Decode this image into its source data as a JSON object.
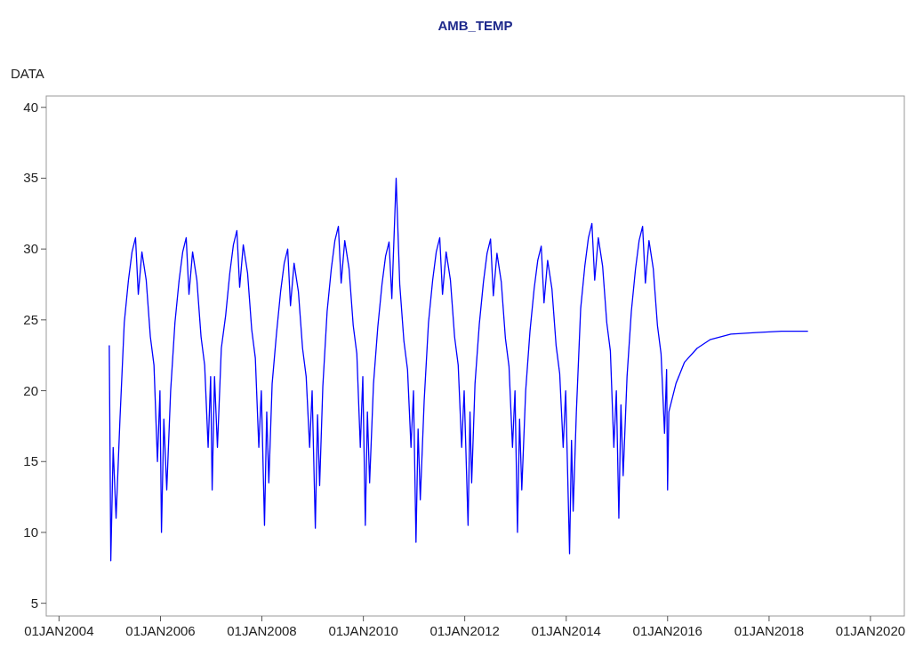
{
  "chart_data": {
    "type": "line",
    "title": "AMB_TEMP",
    "ylabel": "DATA",
    "xlim": [
      "2003-10",
      "2020-09"
    ],
    "ylim": [
      4.1,
      40.8
    ],
    "xticks": [
      {
        "value": "2004-01-01",
        "label": "01JAN2004"
      },
      {
        "value": "2006-01-01",
        "label": "01JAN2006"
      },
      {
        "value": "2008-01-01",
        "label": "01JAN2008"
      },
      {
        "value": "2010-01-01",
        "label": "01JAN2010"
      },
      {
        "value": "2012-01-01",
        "label": "01JAN2012"
      },
      {
        "value": "2014-01-01",
        "label": "01JAN2014"
      },
      {
        "value": "2016-01-01",
        "label": "01JAN2016"
      },
      {
        "value": "2018-01-01",
        "label": "01JAN2018"
      },
      {
        "value": "2020-01-01",
        "label": "01JAN2020"
      }
    ],
    "yticks": [
      5,
      10,
      15,
      20,
      25,
      30,
      35,
      40
    ],
    "grid": false,
    "marker": "none",
    "line_style": "solid",
    "x": [
      "2004-12-28",
      "2005-01-08",
      "2005-01-25",
      "2005-02-15",
      "2005-03-15",
      "2005-04-15",
      "2005-05-15",
      "2005-06-10",
      "2005-07-05",
      "2005-07-25",
      "2005-08-20",
      "2005-09-20",
      "2005-10-20",
      "2005-11-15",
      "2005-12-10",
      "2005-12-28",
      "2006-01-08",
      "2006-01-25",
      "2006-02-15",
      "2006-03-15",
      "2006-04-15",
      "2006-05-15",
      "2006-06-10",
      "2006-07-05",
      "2006-07-25",
      "2006-08-20",
      "2006-09-20",
      "2006-10-20",
      "2006-11-15",
      "2006-12-10",
      "2006-12-28",
      "2007-01-08",
      "2007-01-25",
      "2007-02-15",
      "2007-03-15",
      "2007-04-15",
      "2007-05-15",
      "2007-06-10",
      "2007-07-05",
      "2007-07-25",
      "2007-08-20",
      "2007-09-20",
      "2007-10-20",
      "2007-11-15",
      "2007-12-10",
      "2007-12-28",
      "2008-01-20",
      "2008-02-05",
      "2008-02-20",
      "2008-03-15",
      "2008-04-15",
      "2008-05-15",
      "2008-06-10",
      "2008-07-05",
      "2008-07-25",
      "2008-08-20",
      "2008-09-20",
      "2008-10-20",
      "2008-11-15",
      "2008-12-10",
      "2008-12-28",
      "2009-01-20",
      "2009-02-05",
      "2009-02-20",
      "2009-03-15",
      "2009-04-15",
      "2009-05-15",
      "2009-06-10",
      "2009-07-05",
      "2009-07-25",
      "2009-08-20",
      "2009-09-20",
      "2009-10-20",
      "2009-11-15",
      "2009-12-10",
      "2009-12-28",
      "2010-01-15",
      "2010-01-30",
      "2010-02-15",
      "2010-03-15",
      "2010-04-15",
      "2010-05-15",
      "2010-06-10",
      "2010-07-05",
      "2010-07-25",
      "2010-08-25",
      "2010-09-20",
      "2010-10-20",
      "2010-11-15",
      "2010-12-10",
      "2010-12-28",
      "2011-01-15",
      "2011-01-30",
      "2011-02-15",
      "2011-03-15",
      "2011-04-15",
      "2011-05-15",
      "2011-06-10",
      "2011-07-05",
      "2011-07-25",
      "2011-08-20",
      "2011-09-20",
      "2011-10-20",
      "2011-11-15",
      "2011-12-10",
      "2011-12-28",
      "2012-01-25",
      "2012-02-08",
      "2012-02-20",
      "2012-03-15",
      "2012-04-15",
      "2012-05-15",
      "2012-06-10",
      "2012-07-05",
      "2012-07-25",
      "2012-08-20",
      "2012-09-20",
      "2012-10-20",
      "2012-11-15",
      "2012-12-10",
      "2012-12-28",
      "2013-01-15",
      "2013-01-30",
      "2013-02-15",
      "2013-03-15",
      "2013-04-15",
      "2013-05-15",
      "2013-06-10",
      "2013-07-05",
      "2013-07-25",
      "2013-08-20",
      "2013-09-20",
      "2013-10-20",
      "2013-11-15",
      "2013-12-10",
      "2013-12-28",
      "2014-01-25",
      "2014-02-08",
      "2014-02-20",
      "2014-03-15",
      "2014-04-15",
      "2014-05-15",
      "2014-06-10",
      "2014-07-05",
      "2014-07-25",
      "2014-08-20",
      "2014-09-20",
      "2014-10-20",
      "2014-11-15",
      "2014-12-10",
      "2014-12-28",
      "2015-01-15",
      "2015-01-30",
      "2015-02-15",
      "2015-03-15",
      "2015-04-15",
      "2015-05-15",
      "2015-06-10",
      "2015-07-05",
      "2015-07-25",
      "2015-08-20",
      "2015-09-20",
      "2015-10-20",
      "2015-11-15",
      "2015-12-10",
      "2015-12-25",
      "2016-01-01",
      "2016-01-10",
      "2016-03-01",
      "2016-05-01",
      "2016-08-01",
      "2016-11-01",
      "2017-04-01",
      "2017-10-01",
      "2018-04-01",
      "2018-10-08"
    ],
    "series": [
      {
        "color": "#0000ff",
        "values": [
          23.2,
          8,
          16,
          11,
          18,
          24.8,
          27.8,
          29.8,
          30.8,
          26.8,
          29.8,
          27.8,
          23.8,
          21.8,
          15,
          20,
          10,
          18,
          13,
          20,
          24.8,
          27.8,
          29.8,
          30.8,
          26.8,
          29.8,
          27.8,
          23.8,
          21.8,
          16,
          21,
          13,
          21,
          16,
          23,
          25.3,
          28.3,
          30.3,
          31.3,
          27.3,
          30.3,
          28.3,
          24.3,
          22.3,
          16,
          20,
          10.5,
          18.5,
          13.5,
          20.5,
          24,
          27,
          29,
          30,
          26,
          29,
          27,
          23,
          21,
          16,
          20,
          10.3,
          18.3,
          13.3,
          20.3,
          25.6,
          28.6,
          30.6,
          31.6,
          27.6,
          30.6,
          28.6,
          24.6,
          22.6,
          16,
          21,
          10.5,
          18.5,
          13.5,
          20.5,
          24.5,
          27.5,
          29.5,
          30.5,
          26.5,
          35,
          27.5,
          23.5,
          21.5,
          16,
          20,
          9.3,
          17.3,
          12.3,
          19.3,
          24.8,
          27.8,
          29.8,
          30.8,
          26.8,
          29.8,
          27.8,
          23.8,
          21.8,
          16,
          20,
          10.5,
          18.5,
          13.5,
          20.5,
          24.7,
          27.7,
          29.7,
          30.7,
          26.7,
          29.7,
          27.7,
          23.7,
          21.7,
          16,
          20,
          10,
          18,
          13,
          20,
          24.2,
          27.2,
          29.2,
          30.2,
          26.2,
          29.2,
          27.2,
          23.2,
          21.2,
          16,
          20,
          8.5,
          16.5,
          11.5,
          18.5,
          25.8,
          28.8,
          30.8,
          31.8,
          27.8,
          30.8,
          28.8,
          24.8,
          22.8,
          16,
          20,
          11,
          19,
          14,
          21,
          25.6,
          28.6,
          30.6,
          31.6,
          27.6,
          30.6,
          28.6,
          24.6,
          22.6,
          17,
          21.5,
          13,
          18.5,
          20.5,
          22,
          23,
          23.6,
          24,
          24.1,
          24.2,
          24.2
        ]
      }
    ]
  }
}
